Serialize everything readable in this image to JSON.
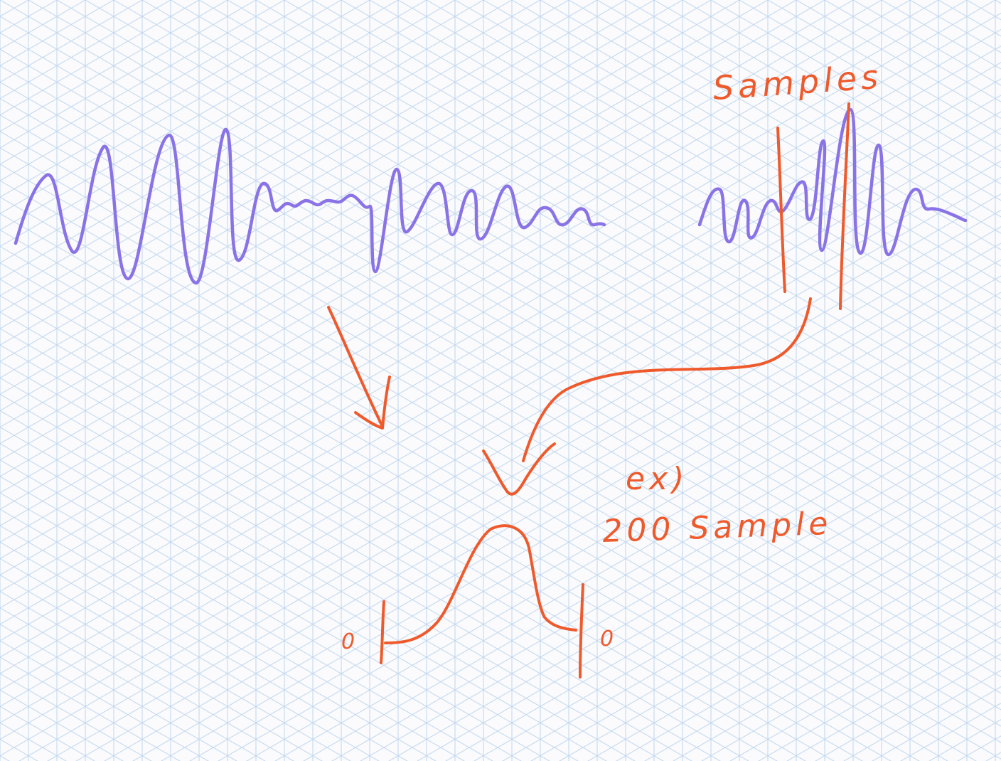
{
  "diagram": {
    "labels": {
      "samples": "Samples",
      "example_prefix": "ex)",
      "example_text": "200 Sample",
      "axis_left": "0",
      "axis_right": "0"
    },
    "colors": {
      "background": "#fbfbfd",
      "grid": "#b9d2ec",
      "wave": "#8a73e6",
      "annotation": "#ef5a2c"
    },
    "nodes": [
      {
        "id": "long-waveform",
        "kind": "signal"
      },
      {
        "id": "sampled-waveform",
        "kind": "signal",
        "label_ref": "samples"
      },
      {
        "id": "distribution-curve",
        "kind": "bell-curve",
        "label_ref": "example_text"
      }
    ],
    "edges": [
      {
        "from": "long-waveform",
        "to": "distribution-curve"
      },
      {
        "from": "sampled-waveform",
        "to": "distribution-curve"
      }
    ]
  }
}
